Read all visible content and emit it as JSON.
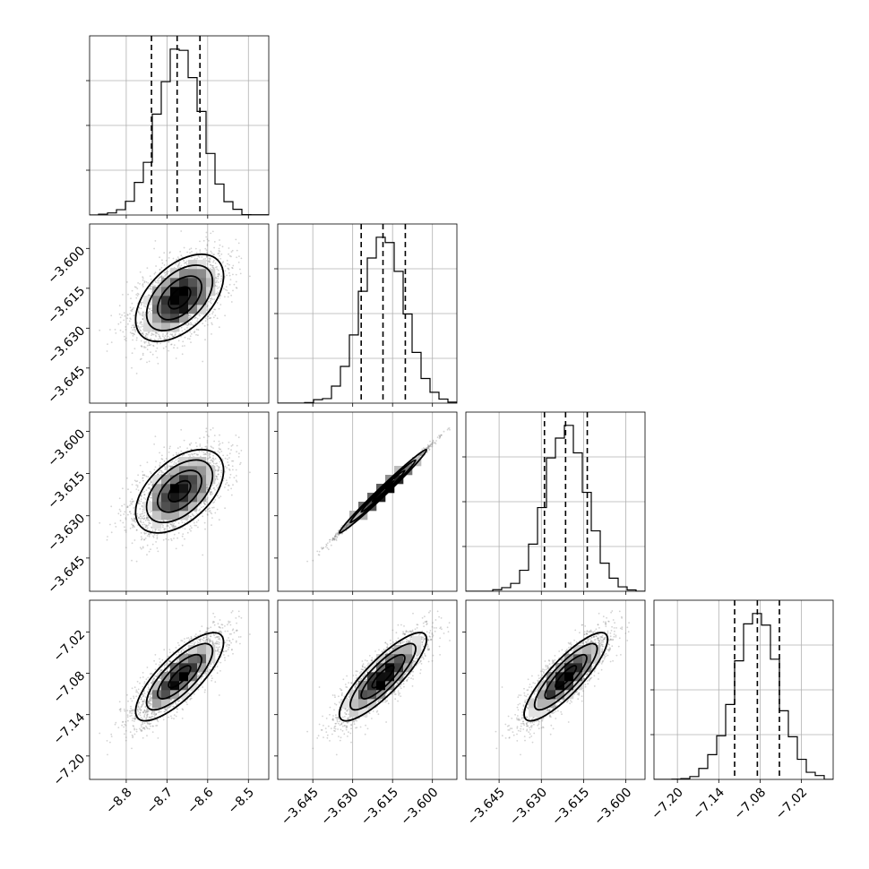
{
  "chart_data": {
    "type": "corner",
    "parameters": [
      {
        "index": 0,
        "range": [
          -8.89,
          -8.45
        ],
        "ticks": [
          -8.8,
          -8.7,
          -8.6,
          -8.5
        ],
        "tick_labels": [
          "−8.8",
          "−8.7",
          "−8.6",
          "−8.5"
        ],
        "mean": -8.669,
        "sd": 0.054,
        "quantiles": [
          -8.738,
          -8.675,
          -8.619
        ]
      },
      {
        "index": 1,
        "range": [
          -3.6582,
          -3.5908
        ],
        "ticks": [
          -3.645,
          -3.63,
          -3.615,
          -3.6
        ],
        "tick_labels": [
          "−3.645",
          "−3.630",
          "−3.615",
          "−3.600"
        ],
        "mean": -3.6186,
        "sd": 0.0082,
        "quantiles": [
          -3.6268,
          -3.6186,
          -3.6102
        ]
      },
      {
        "index": 2,
        "range": [
          -3.6568,
          -3.5932
        ],
        "ticks": [
          -3.645,
          -3.63,
          -3.615,
          -3.6
        ],
        "tick_labels": [
          "−3.645",
          "−3.630",
          "−3.615",
          "−3.600"
        ],
        "mean": -3.6213,
        "sd": 0.0074,
        "quantiles": [
          -3.6289,
          -3.6214,
          -3.6137
        ]
      },
      {
        "index": 3,
        "range": [
          -7.234,
          -6.974
        ],
        "ticks": [
          -7.2,
          -7.14,
          -7.08,
          -7.02
        ],
        "tick_labels": [
          "−7.20",
          "−7.14",
          "−7.08",
          "−7.02"
        ],
        "mean": -7.085,
        "sd": 0.032,
        "quantiles": [
          -7.117,
          -7.084,
          -7.052
        ]
      }
    ],
    "correlations": [
      {
        "i": 1,
        "j": 0,
        "rho": 0.5
      },
      {
        "i": 2,
        "j": 0,
        "rho": 0.5
      },
      {
        "i": 2,
        "j": 1,
        "rho": 0.99
      },
      {
        "i": 3,
        "j": 0,
        "rho": 0.78
      },
      {
        "i": 3,
        "j": 1,
        "rho": 0.85
      },
      {
        "i": 3,
        "j": 2,
        "rho": 0.85
      }
    ],
    "histogram_bins": 20,
    "grid": true,
    "quantile_lines": "dashed",
    "sample_points": "light gray scatter",
    "density_colormap": "grays"
  },
  "colors": {
    "background": "#ffffff",
    "axes": "#000000",
    "grid": "#b0b0b0",
    "scatter": "#808080",
    "density_max": "#000000",
    "density_min": "#f5f5f5"
  }
}
